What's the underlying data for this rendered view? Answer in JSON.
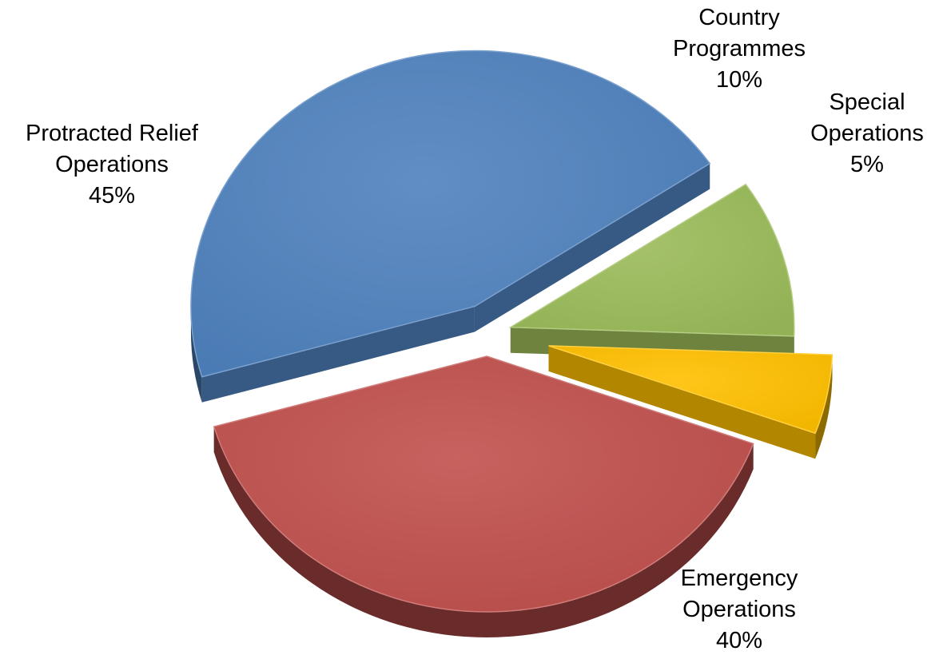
{
  "chart_data": {
    "type": "pie",
    "title": "",
    "slices": [
      {
        "name": "Emergency Operations",
        "label_lines": [
          "Emergency",
          "Operations"
        ],
        "value": 40,
        "value_label": "40%",
        "color": "#C0504D"
      },
      {
        "name": "Protracted Relief Operations",
        "label_lines": [
          "Protracted Relief",
          "Operations"
        ],
        "value": 45,
        "value_label": "45%",
        "color": "#4F81BD"
      },
      {
        "name": "Country Programmes",
        "label_lines": [
          "Country",
          "Programmes"
        ],
        "value": 10,
        "value_label": "10%",
        "color": "#9BBB59"
      },
      {
        "name": "Special Operations",
        "label_lines": [
          "Special",
          "Operations"
        ],
        "value": 5,
        "value_label": "5%",
        "color": "#FFC000"
      }
    ],
    "legend": "none",
    "style": "3d-exploded"
  }
}
